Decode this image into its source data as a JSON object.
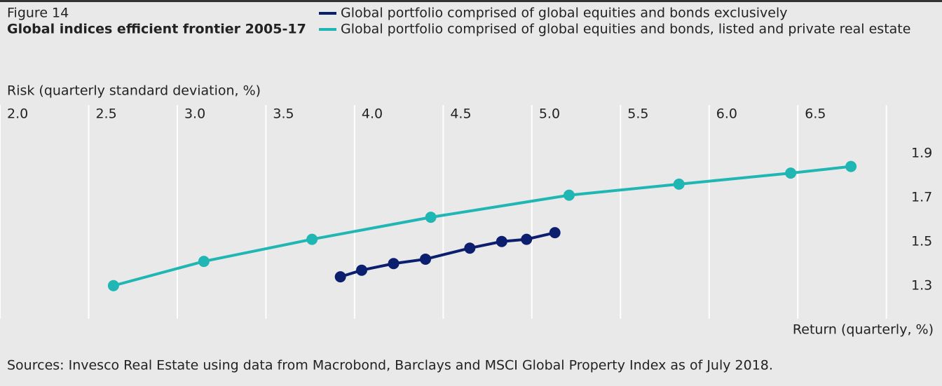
{
  "chart_data": {
    "type": "line",
    "figure_label": "Figure 14",
    "title": "Global indices efficient frontier 2005-17",
    "x_label": "Risk (quarterly standard deviation, %)",
    "y_label": "Return (quarterly, %)",
    "source": "Sources: Invesco Real Estate using data from Macrobond, Barclays and MSCI Global Property Index as of July 2018.",
    "series": [
      {
        "name": "Global portfolio comprised of global equities and bonds exclusively",
        "color": "#0b1f6e",
        "x": [
          3.92,
          4.04,
          4.22,
          4.4,
          4.65,
          4.83,
          4.97,
          5.13
        ],
        "values": [
          1.34,
          1.37,
          1.4,
          1.42,
          1.47,
          1.5,
          1.51,
          1.54
        ]
      },
      {
        "name": "Global portfolio comprised of global equities and bonds, listed and private real estate",
        "color": "#1fb6b4",
        "x": [
          2.64,
          3.15,
          3.76,
          4.43,
          5.21,
          5.83,
          6.46,
          6.8
        ],
        "values": [
          1.3,
          1.41,
          1.51,
          1.61,
          1.71,
          1.76,
          1.81,
          1.84
        ]
      }
    ],
    "xlim": [
      2.0,
      7.1
    ],
    "xticks": [
      {
        "value": 2.0,
        "label": "2.0"
      },
      2.5,
      {
        "value": 3.0,
        "label": "3.0"
      },
      3.5,
      {
        "value": 4.0,
        "label": "4.0"
      },
      4.5,
      {
        "value": 5.0,
        "label": "5.0"
      },
      5.5,
      {
        "value": 6.0,
        "label": "6.0"
      },
      6.5,
      {
        "value": 7.0,
        "label": ""
      }
    ],
    "ylim": [
      1.15,
      2.1
    ],
    "yticks": [
      1.3,
      1.5,
      1.7,
      1.9
    ],
    "grid": true
  }
}
